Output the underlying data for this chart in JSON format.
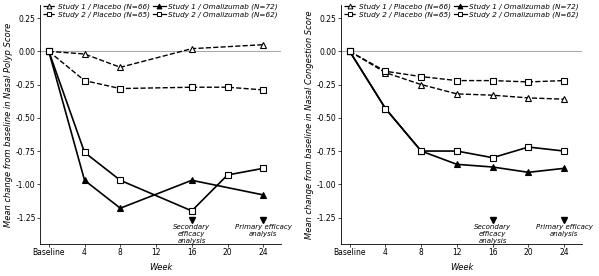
{
  "left_chart": {
    "title_ylabel": "Mean change from baseline in Nasal Polyp Score",
    "xlabel": "Week",
    "xlim": [
      -1,
      26
    ],
    "ylim": [
      -1.45,
      0.35
    ],
    "yticks": [
      0.25,
      0.0,
      -0.25,
      -0.5,
      -0.75,
      -1.0,
      -1.25
    ],
    "xtick_labels": [
      "Baseline",
      "4",
      "8",
      "12",
      "16",
      "20",
      "24"
    ],
    "xtick_pos": [
      0,
      4,
      8,
      12,
      16,
      20,
      24
    ],
    "series": [
      {
        "label": "Study 1 / Placebo (N=66)",
        "x": [
          0,
          4,
          8,
          16,
          24
        ],
        "y": [
          0.0,
          -0.02,
          -0.12,
          0.02,
          0.05
        ],
        "linestyle": "dashed",
        "marker": "^",
        "fillstyle": "none",
        "markersize": 4,
        "linewidth": 1.0
      },
      {
        "label": "Study 2 / Placebo (N=65)",
        "x": [
          0,
          4,
          8,
          16,
          20,
          24
        ],
        "y": [
          0.0,
          -0.22,
          -0.28,
          -0.27,
          -0.27,
          -0.29
        ],
        "linestyle": "dashed",
        "marker": "s",
        "fillstyle": "none",
        "markersize": 4,
        "linewidth": 1.0
      },
      {
        "label": "Study 1 / Omalizumab (N=72)",
        "x": [
          0,
          4,
          8,
          16,
          24
        ],
        "y": [
          0.0,
          -0.97,
          -1.18,
          -0.97,
          -1.08
        ],
        "linestyle": "solid",
        "marker": "^",
        "fillstyle": "full",
        "markersize": 4,
        "linewidth": 1.2
      },
      {
        "label": "Study 2 / Omalizumab (N=62)",
        "x": [
          0,
          4,
          8,
          16,
          20,
          24
        ],
        "y": [
          0.0,
          -0.76,
          -0.97,
          -1.2,
          -0.93,
          -0.88
        ],
        "linestyle": "solid",
        "marker": "s",
        "fillstyle": "none",
        "markersize": 4,
        "linewidth": 1.2
      }
    ],
    "secondary_efficacy_x": 16,
    "primary_efficacy_x": 24
  },
  "right_chart": {
    "title_ylabel": "Mean change from baseline in Nasal Congestion Score",
    "xlabel": "Week",
    "xlim": [
      -1,
      26
    ],
    "ylim": [
      -1.45,
      0.35
    ],
    "yticks": [
      0.25,
      0.0,
      -0.25,
      -0.5,
      -0.75,
      -1.0,
      -1.25
    ],
    "xtick_labels": [
      "Baseline",
      "4",
      "8",
      "12",
      "16",
      "20",
      "24"
    ],
    "xtick_pos": [
      0,
      4,
      8,
      12,
      16,
      20,
      24
    ],
    "series": [
      {
        "label": "Study 1 / Placebo (N=66)",
        "x": [
          0,
          4,
          8,
          12,
          16,
          20,
          24
        ],
        "y": [
          0.0,
          -0.16,
          -0.25,
          -0.32,
          -0.33,
          -0.35,
          -0.36
        ],
        "linestyle": "dashed",
        "marker": "^",
        "fillstyle": "none",
        "markersize": 4,
        "linewidth": 1.0
      },
      {
        "label": "Study 2 / Placebo (N=65)",
        "x": [
          0,
          4,
          8,
          12,
          16,
          20,
          24
        ],
        "y": [
          0.0,
          -0.15,
          -0.19,
          -0.22,
          -0.22,
          -0.23,
          -0.22
        ],
        "linestyle": "dashed",
        "marker": "s",
        "fillstyle": "none",
        "markersize": 4,
        "linewidth": 1.0
      },
      {
        "label": "Study 1 / Omalizumab (N=72)",
        "x": [
          0,
          4,
          8,
          12,
          16,
          20,
          24
        ],
        "y": [
          0.0,
          -0.43,
          -0.75,
          -0.85,
          -0.87,
          -0.91,
          -0.88
        ],
        "linestyle": "solid",
        "marker": "^",
        "fillstyle": "full",
        "markersize": 4,
        "linewidth": 1.2
      },
      {
        "label": "Study 2 / Omalizumab (N=62)",
        "x": [
          0,
          4,
          8,
          12,
          16,
          20,
          24
        ],
        "y": [
          0.0,
          -0.43,
          -0.75,
          -0.75,
          -0.8,
          -0.72,
          -0.75
        ],
        "linestyle": "solid",
        "marker": "s",
        "fillstyle": "none",
        "markersize": 4,
        "linewidth": 1.2
      }
    ],
    "secondary_efficacy_x": 16,
    "primary_efficacy_x": 24
  },
  "background_color": "#ffffff",
  "annotation_fontsize": 5.0,
  "axis_label_fontsize": 6.0,
  "legend_fontsize": 5.2,
  "tick_fontsize": 5.5,
  "line_color": "#000000"
}
